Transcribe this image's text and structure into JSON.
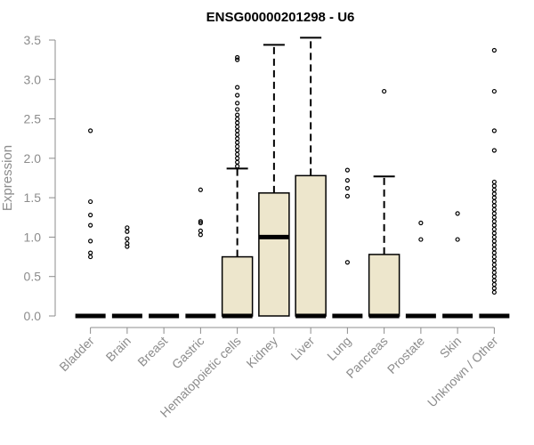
{
  "chart_data": {
    "type": "boxplot",
    "title": "ENSG00000201298 - U6",
    "xlabel": "",
    "ylabel": "Expression",
    "ylim": [
      0,
      3.5
    ],
    "yticks": [
      "0.0",
      "0.5",
      "1.0",
      "1.5",
      "2.0",
      "2.5",
      "3.0",
      "3.5"
    ],
    "box_fill": "#ede6cc",
    "categories": [
      "Bladder",
      "Brain",
      "Breast",
      "Gastric",
      "Hematopoietic cells",
      "Kidney",
      "Liver",
      "Lung",
      "Pancreas",
      "Prostate",
      "Skin",
      "Unknown / Other"
    ],
    "boxes": [
      {
        "q1": 0,
        "median": 0,
        "q3": 0,
        "whisker_low": 0,
        "whisker_high": 0,
        "outliers": [
          0.75,
          0.8,
          0.95,
          1.15,
          1.28,
          1.45,
          2.35
        ]
      },
      {
        "q1": 0,
        "median": 0,
        "q3": 0,
        "whisker_low": 0,
        "whisker_high": 0,
        "outliers": [
          0.88,
          0.92,
          0.98,
          1.07,
          1.12
        ]
      },
      {
        "q1": 0,
        "median": 0,
        "q3": 0,
        "whisker_low": 0,
        "whisker_high": 0,
        "outliers": []
      },
      {
        "q1": 0,
        "median": 0,
        "q3": 0,
        "whisker_low": 0,
        "whisker_high": 0,
        "outliers": [
          1.03,
          1.08,
          1.18,
          1.2,
          1.6
        ]
      },
      {
        "q1": 0,
        "median": 0,
        "q3": 0.75,
        "whisker_low": 0,
        "whisker_high": 1.87,
        "outliers": [
          1.9,
          1.95,
          2.0,
          2.05,
          2.1,
          2.15,
          2.2,
          2.25,
          2.3,
          2.35,
          2.4,
          2.45,
          2.5,
          2.55,
          2.62,
          2.7,
          2.8,
          2.9,
          3.25,
          3.28
        ]
      },
      {
        "q1": 0,
        "median": 1.0,
        "q3": 1.56,
        "whisker_low": 0,
        "whisker_high": 3.44,
        "outliers": []
      },
      {
        "q1": 0,
        "median": 0,
        "q3": 1.78,
        "whisker_low": 0,
        "whisker_high": 3.53,
        "outliers": []
      },
      {
        "q1": 0,
        "median": 0,
        "q3": 0,
        "whisker_low": 0,
        "whisker_high": 0,
        "outliers": [
          0.68,
          1.52,
          1.62,
          1.72,
          1.85
        ]
      },
      {
        "q1": 0,
        "median": 0,
        "q3": 0.78,
        "whisker_low": 0,
        "whisker_high": 1.77,
        "outliers": [
          2.85
        ]
      },
      {
        "q1": 0,
        "median": 0,
        "q3": 0,
        "whisker_low": 0,
        "whisker_high": 0,
        "outliers": [
          0.97,
          1.18
        ]
      },
      {
        "q1": 0,
        "median": 0,
        "q3": 0,
        "whisker_low": 0,
        "whisker_high": 0,
        "outliers": [
          0.97,
          1.3
        ]
      },
      {
        "q1": 0,
        "median": 0,
        "q3": 0,
        "whisker_low": 0,
        "whisker_high": 0,
        "outliers": [
          0.3,
          0.35,
          0.4,
          0.45,
          0.5,
          0.55,
          0.6,
          0.65,
          0.7,
          0.75,
          0.8,
          0.85,
          0.9,
          0.95,
          1.0,
          1.05,
          1.1,
          1.15,
          1.2,
          1.25,
          1.3,
          1.35,
          1.4,
          1.45,
          1.5,
          1.55,
          1.6,
          1.65,
          1.7,
          2.1,
          2.35,
          2.85,
          3.37
        ]
      }
    ]
  }
}
